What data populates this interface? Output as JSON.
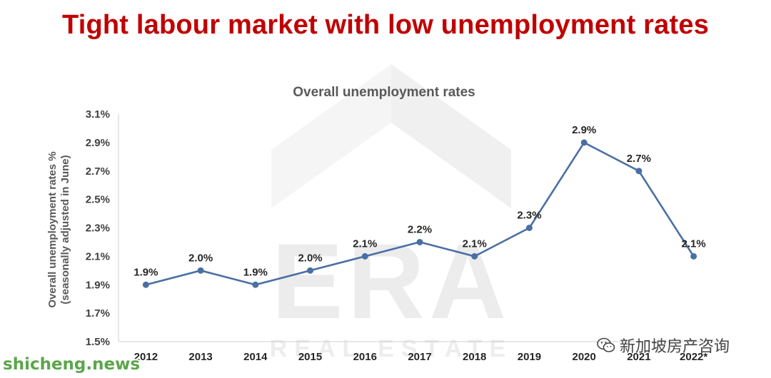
{
  "headline": "Tight labour market with low unemployment rates",
  "watermark": {
    "letters": "ERA",
    "subtext": "REAL ESTATE"
  },
  "brand_tag": {
    "icon": "wechat-icon",
    "text": "新加坡房产咨询"
  },
  "site_tag": "shicheng.news",
  "colors": {
    "headline": "#c00000",
    "line": "#4a6fa5",
    "site_tag": "#5aa64a"
  },
  "chart_data": {
    "type": "line",
    "title": "Overall unemployment rates",
    "ylabel": "Overall unemployment rates % (seasonally adjusted in June)",
    "ylabel_lines": [
      "Overall unemployment rates %",
      "(seasonally adjusted in June)"
    ],
    "xlabel": "",
    "categories": [
      "2012",
      "2013",
      "2014",
      "2015",
      "2016",
      "2017",
      "2018",
      "2019",
      "2020",
      "2021",
      "2022*"
    ],
    "values": [
      1.9,
      2.0,
      1.9,
      2.0,
      2.1,
      2.2,
      2.1,
      2.3,
      2.9,
      2.7,
      2.1
    ],
    "data_labels": [
      "1.9%",
      "2.0%",
      "1.9%",
      "2.0%",
      "2.1%",
      "2.2%",
      "2.1%",
      "2.3%",
      "2.9%",
      "2.7%",
      "2.1%"
    ],
    "ylim": [
      1.5,
      3.1
    ],
    "yticks": [
      1.5,
      1.7,
      1.9,
      2.1,
      2.3,
      2.5,
      2.7,
      2.9,
      3.1
    ],
    "ytick_labels": [
      "1.5%",
      "1.7%",
      "1.9%",
      "2.1%",
      "2.3%",
      "2.5%",
      "2.7%",
      "2.9%",
      "3.1%"
    ],
    "grid": false,
    "legend": "none"
  }
}
